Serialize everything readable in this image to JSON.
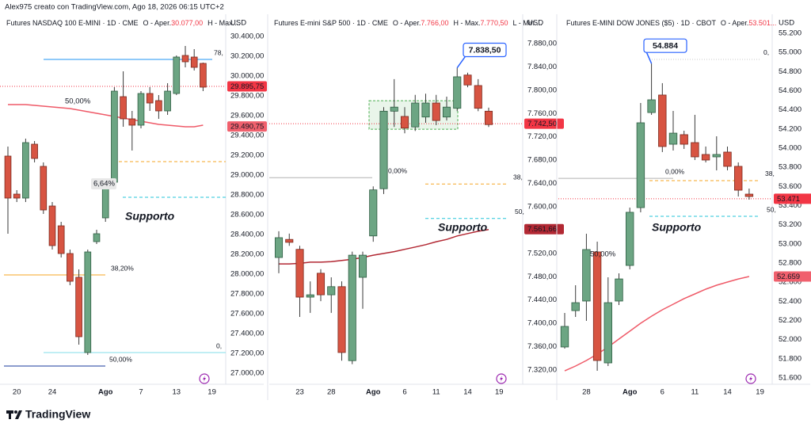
{
  "header": "Alex975 creato con TradingView.com, Ago 18, 2026 06:15 UTC+2",
  "footer": "TradingView",
  "chart_data": [
    {
      "type": "candlestick",
      "title": "Futures NASDAQ 100 E-MINI · 1D · CME",
      "legend_items": [
        {
          "label": "O - Aper.",
          "value": "30.077,00"
        },
        {
          "label": "H - Max...."
        }
      ],
      "y_axis_label": "USD",
      "categories": [
        null,
        "20",
        null,
        null,
        null,
        "24",
        null,
        null,
        null,
        null,
        null,
        "Ago",
        null,
        null,
        null,
        "7",
        null,
        null,
        null,
        "13",
        null,
        null,
        null,
        "19"
      ],
      "open": [
        29192,
        28808,
        28768,
        29312,
        29088,
        28688,
        28488,
        28208,
        27968,
        27208,
        28328,
        28568,
        28928,
        29792,
        29568,
        29504,
        29824,
        29752,
        29648,
        29824,
        30208,
        30192,
        30128,
        null
      ],
      "high": [
        29288,
        28848,
        29368,
        29344,
        29128,
        28728,
        28528,
        28248,
        28048,
        28248,
        28448,
        28928,
        29888,
        30048,
        29648,
        29848,
        29888,
        29808,
        29928,
        30208,
        30304,
        30272,
        30136,
        null
      ],
      "low": [
        28408,
        28728,
        28728,
        29128,
        28608,
        28248,
        28168,
        27888,
        27288,
        27184,
        28304,
        28528,
        28888,
        29488,
        29248,
        29472,
        29648,
        29568,
        29608,
        29808,
        30088,
        30056,
        29848,
        null
      ],
      "close": [
        28768,
        28768,
        29328,
        29168,
        28648,
        28288,
        28208,
        27928,
        27368,
        28224,
        28408,
        28888,
        29848,
        29568,
        29504,
        29824,
        29728,
        29648,
        29848,
        30192,
        30144,
        30088,
        29888,
        null
      ],
      "ma": [
        29712,
        29712,
        29712,
        29704,
        29696,
        29688,
        29680,
        29672,
        29656,
        29640,
        29624,
        29608,
        29592,
        29576,
        29560,
        29544,
        29528,
        29512,
        29504,
        29496,
        29488,
        29488,
        29504,
        null
      ],
      "up_color": "#6ca583",
      "down_color": "#d75442",
      "ma_color": "#ef5a68",
      "ylim": [
        27000,
        30400
      ],
      "yticks": [
        {
          "value": 30400,
          "label": "30.400,00"
        },
        {
          "value": 30200,
          "label": "30.200,00"
        },
        {
          "value": 30000,
          "label": "30.000,00"
        },
        {
          "value": 29800,
          "label": "29.800,00"
        },
        {
          "value": 29600,
          "label": "29.600,00"
        },
        {
          "value": 29400,
          "label": "29.400,00"
        },
        {
          "value": 29200,
          "label": "29.200,00"
        },
        {
          "value": 29000,
          "label": "29.000,00"
        },
        {
          "value": 28800,
          "label": "28.800,00"
        },
        {
          "value": 28600,
          "label": "28.600,00"
        },
        {
          "value": 28400,
          "label": "28.400,00"
        },
        {
          "value": 28200,
          "label": "28.200,00"
        },
        {
          "value": 28000,
          "label": "28.000,00"
        },
        {
          "value": 27800,
          "label": "27.800,00"
        },
        {
          "value": 27600,
          "label": "27.600,00"
        },
        {
          "value": 27400,
          "label": "27.400,00"
        },
        {
          "value": 27200,
          "label": "27.200,00"
        },
        {
          "value": 27000,
          "label": "27.000,00"
        }
      ],
      "price_labels": [
        {
          "value": 29895.75,
          "label": "29.895,75",
          "color": "#f23645"
        },
        {
          "value": 29490.75,
          "label": "29.490,75",
          "color": "#f0606d"
        }
      ],
      "levels": [
        {
          "value": 30168,
          "color": "#2196f3",
          "style": "solid",
          "label": "78,"
        },
        {
          "value": 29136,
          "color": "#f5a623",
          "style": "dashed"
        },
        {
          "value": 28776,
          "color": "#26c6da",
          "style": "dashed"
        },
        {
          "value": 27992,
          "color": "#f5a623",
          "style": "solid",
          "label": "38,20%"
        },
        {
          "value": 27208,
          "color": "#80deea",
          "style": "solid",
          "label": "0,"
        },
        {
          "value": 27072,
          "color": "#1a3a9c",
          "style": "solid",
          "label": "50,00%"
        }
      ],
      "annotations": [
        {
          "text": "Supporto",
          "color": "#26c6da"
        },
        {
          "text": "6,64%",
          "color": "#555555"
        },
        {
          "text": "50,00%",
          "color": "#ef5a68"
        }
      ]
    },
    {
      "type": "candlestick",
      "title": "Futures E-mini S&P 500 · 1D · CME",
      "legend_items": [
        {
          "label": "O - Aper.",
          "value": "7.766,00"
        },
        {
          "label": "H - Max.",
          "value": "7.770,50"
        },
        {
          "label": "L - Min...."
        }
      ],
      "y_axis_label": "USD",
      "categories": [
        null,
        null,
        "23",
        null,
        null,
        "28",
        null,
        null,
        null,
        "Ago",
        null,
        null,
        "6",
        null,
        null,
        "11",
        null,
        null,
        "14",
        null,
        null,
        "19"
      ],
      "open": [
        7513,
        7544,
        7527,
        7445,
        7486,
        7449,
        7463,
        7336,
        7479,
        7550,
        7631,
        7764,
        7755,
        7737,
        7754,
        7778,
        7754,
        7769,
        7826,
        7808,
        7764,
        null
      ],
      "high": [
        7558,
        7554,
        7533,
        7472,
        7493,
        7479,
        7472,
        7523,
        7523,
        7635,
        7771,
        7819,
        7771,
        7792,
        7794,
        7792,
        7789,
        7838.5,
        7830,
        7819,
        7770,
        null
      ],
      "low": [
        7486,
        7533,
        7411,
        7418,
        7438,
        7418,
        7336,
        7330,
        7425,
        7540,
        7622,
        7737,
        7726,
        7730,
        7744,
        7740,
        7748,
        7764,
        7805,
        7764,
        7737,
        null
      ],
      "close": [
        7547,
        7539,
        7445,
        7449,
        7449,
        7463,
        7350,
        7517,
        7517,
        7629,
        7764,
        7771,
        7735,
        7778,
        7778,
        7748,
        7771,
        7823,
        7809,
        7769,
        7741,
        null
      ],
      "ma": [
        7502,
        7502,
        7503,
        7505,
        7505,
        7506,
        7508,
        7510,
        7513,
        7517,
        7520,
        7523,
        7527,
        7531,
        7535,
        7540,
        7544,
        7550,
        7554,
        7558,
        7561,
        null
      ],
      "up_color": "#6ca583",
      "down_color": "#d75442",
      "ma_color": "#b22833",
      "ylim": [
        7320,
        7880
      ],
      "yticks": [
        {
          "value": 7880,
          "label": "7.880,00"
        },
        {
          "value": 7840,
          "label": "7.840,00"
        },
        {
          "value": 7800,
          "label": "7.800,00"
        },
        {
          "value": 7760,
          "label": "7.760,00"
        },
        {
          "value": 7720,
          "label": "7.720,00"
        },
        {
          "value": 7680,
          "label": "7.680,00"
        },
        {
          "value": 7640,
          "label": "7.640,00"
        },
        {
          "value": 7600,
          "label": "7.600,00"
        },
        {
          "value": 7560,
          "label": "7.560,00"
        },
        {
          "value": 7520,
          "label": "7.520,00"
        },
        {
          "value": 7480,
          "label": "7.480,00"
        },
        {
          "value": 7440,
          "label": "7.440,00"
        },
        {
          "value": 7400,
          "label": "7.400,00"
        },
        {
          "value": 7360,
          "label": "7.360,00"
        },
        {
          "value": 7320,
          "label": "7.320,00"
        }
      ],
      "price_labels": [
        {
          "value": 7742.5,
          "label": "7.742,50",
          "color": "#f23645"
        },
        {
          "value": 7561.66,
          "label": "7.561,66",
          "color": "#b22833"
        }
      ],
      "levels": [
        {
          "value": 7650,
          "color": "#b0b0b0",
          "style": "solid",
          "label": "0,00%"
        },
        {
          "value": 7639,
          "color": "#f5a623",
          "style": "dashed",
          "label": "38,"
        },
        {
          "value": 7580,
          "color": "#26c6da",
          "style": "dashed",
          "label": "50,"
        }
      ],
      "zone": {
        "low": 7733,
        "high": 7782,
        "color": "#4caf50"
      },
      "callout": {
        "value": 7838.5,
        "label": "7.838,50",
        "color": "#2962ff"
      },
      "annotations": [
        {
          "text": "Supporto",
          "color": "#26c6da"
        }
      ]
    },
    {
      "type": "candlestick",
      "title": "Futures E-MINI DOW JONES ($5) · 1D · CBOT",
      "legend_items": [
        {
          "label": "O - Aper.",
          "value": "53.501..."
        }
      ],
      "y_axis_label": "USD",
      "categories": [
        null,
        null,
        "28",
        null,
        null,
        null,
        "Ago",
        null,
        null,
        "6",
        null,
        null,
        "11",
        null,
        null,
        "14",
        null,
        null,
        "19"
      ],
      "open": [
        51923,
        52303,
        52403,
        52916,
        51757,
        52403,
        52775,
        53379,
        54372,
        54555,
        54041,
        54141,
        54058,
        53934,
        53909,
        53959,
        53810,
        53520,
        null
      ],
      "high": [
        52279,
        52568,
        53106,
        53023,
        52651,
        52692,
        53379,
        54472,
        54884,
        54679,
        54389,
        54182,
        54348,
        54017,
        54124,
        54017,
        53851,
        53578,
        null
      ],
      "low": [
        51906,
        52237,
        52196,
        51674,
        51724,
        52361,
        52734,
        53330,
        54348,
        53959,
        53975,
        53992,
        53876,
        53851,
        53768,
        53768,
        53495,
        53462,
        null
      ],
      "close": [
        52138,
        52386,
        52941,
        51782,
        52386,
        52634,
        53330,
        54265,
        54505,
        54017,
        54157,
        54041,
        53909,
        53876,
        53934,
        53810,
        53561,
        53495,
        null
      ],
      "ma": [
        51674,
        51724,
        51782,
        51848,
        51923,
        52006,
        52088,
        52171,
        52245,
        52312,
        52370,
        52428,
        52477,
        52527,
        52568,
        52601,
        52634,
        52659,
        null
      ],
      "up_color": "#6ca583",
      "down_color": "#d75442",
      "ma_color": "#ef5a68",
      "ylim": [
        51600,
        55200
      ],
      "yticks": [
        {
          "value": 55200,
          "label": "55.200"
        },
        {
          "value": 55000,
          "label": "55.000"
        },
        {
          "value": 54800,
          "label": "54.800"
        },
        {
          "value": 54600,
          "label": "54.600"
        },
        {
          "value": 54400,
          "label": "54.400"
        },
        {
          "value": 54200,
          "label": "54.200"
        },
        {
          "value": 54000,
          "label": "54.000"
        },
        {
          "value": 53800,
          "label": "53.800"
        },
        {
          "value": 53600,
          "label": "53.600"
        },
        {
          "value": 53400,
          "label": "53.400"
        },
        {
          "value": 53200,
          "label": "53.200"
        },
        {
          "value": 53000,
          "label": "53.000"
        },
        {
          "value": 52800,
          "label": "52.800"
        },
        {
          "value": 52600,
          "label": "52.600"
        },
        {
          "value": 52400,
          "label": "52.400"
        },
        {
          "value": 52200,
          "label": "52.200"
        },
        {
          "value": 52000,
          "label": "52.000"
        },
        {
          "value": 51800,
          "label": "51.800"
        },
        {
          "value": 51600,
          "label": "51.600"
        }
      ],
      "price_labels": [
        {
          "value": 53471,
          "label": "53.471",
          "color": "#f23645"
        },
        {
          "value": 52659,
          "label": "52.659",
          "color": "#f0606d"
        }
      ],
      "levels": [
        {
          "value": 54927,
          "color": "#c8c8c8",
          "style": "dotted",
          "label": "0,"
        },
        {
          "value": 53685,
          "color": "#b0b0b0",
          "style": "solid",
          "label": "0,00%"
        },
        {
          "value": 53661,
          "color": "#f5a623",
          "style": "dashed",
          "label": "38,"
        },
        {
          "value": 53288,
          "color": "#26c6da",
          "style": "dashed",
          "label": "50,"
        }
      ],
      "callout": {
        "value": 54884,
        "label": "54.884",
        "color": "#2962ff"
      },
      "annotations": [
        {
          "text": "Supporto",
          "color": "#26c6da"
        },
        {
          "text": "50,00%",
          "color": "#ef5a68"
        }
      ]
    }
  ]
}
